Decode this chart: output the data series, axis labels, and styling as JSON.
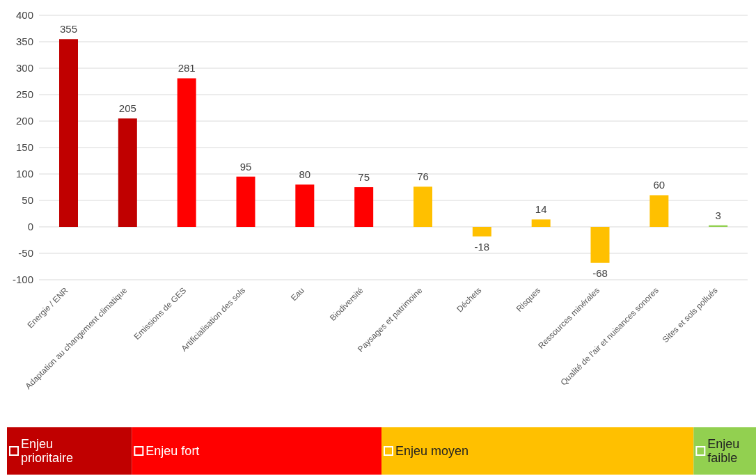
{
  "chart_data": {
    "type": "bar",
    "categories": [
      "Energie / ENR",
      "Adaptation au changement climatique",
      "Emissions de GES",
      "Artificialisation des sols",
      "Eau",
      "Biodiversité",
      "Paysages et patrimoine",
      "Déchets",
      "Risques",
      "Ressources minérales",
      "Qualité de l'air et nuisances sonores",
      "Sites et sols pollués"
    ],
    "series": [
      {
        "name": "Enjeu prioritaire",
        "color": "#c00000",
        "values": [
          355,
          205,
          null,
          null,
          null,
          null,
          null,
          null,
          null,
          null,
          null,
          null
        ]
      },
      {
        "name": "Enjeu fort",
        "color": "#ff0000",
        "values": [
          null,
          null,
          281,
          95,
          80,
          75,
          null,
          null,
          null,
          null,
          null,
          null
        ]
      },
      {
        "name": "Enjeu moyen",
        "color": "#ffc000",
        "values": [
          null,
          null,
          null,
          null,
          null,
          null,
          76,
          -18,
          14,
          -68,
          60,
          null
        ]
      },
      {
        "name": "Enjeu faible",
        "color": "#92d050",
        "values": [
          null,
          null,
          null,
          null,
          null,
          null,
          null,
          null,
          null,
          null,
          null,
          3
        ]
      }
    ],
    "ylim": [
      -100,
      400
    ],
    "yticks": [
      -100,
      -50,
      0,
      50,
      100,
      150,
      200,
      250,
      300,
      350,
      400
    ],
    "grid": "y",
    "data_labels": true,
    "legend": "bottom"
  }
}
